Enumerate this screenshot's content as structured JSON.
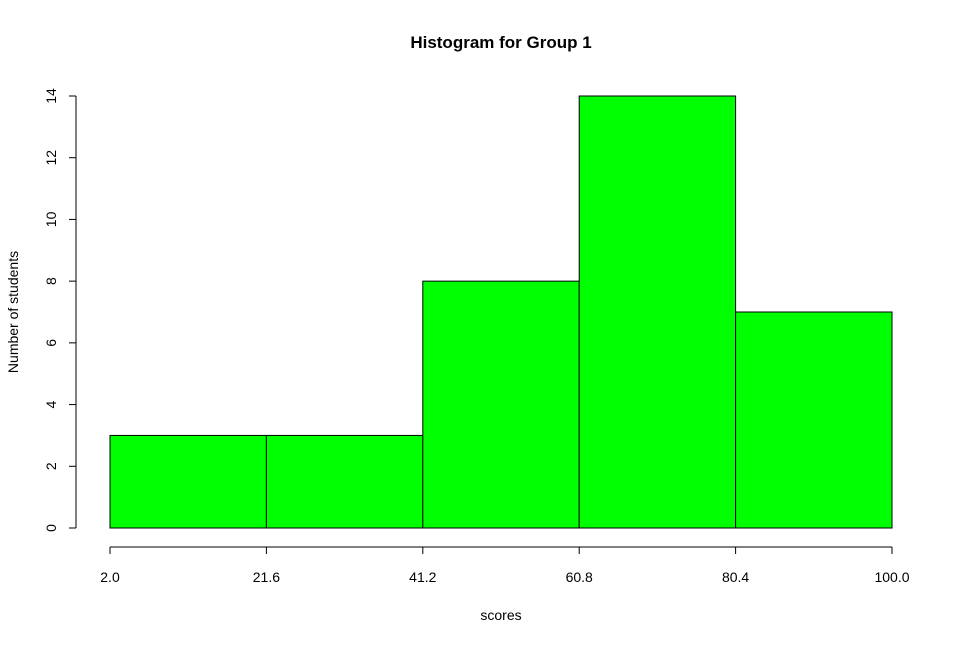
{
  "chart_data": {
    "type": "histogram",
    "title": "Histogram for Group 1",
    "xlabel": "scores",
    "ylabel": "Number of students",
    "bin_edges": [
      2.0,
      21.6,
      41.2,
      60.8,
      80.4,
      100.0
    ],
    "bin_edge_labels": [
      "2.0",
      "21.6",
      "41.2",
      "60.8",
      "80.4",
      "100.0"
    ],
    "counts": [
      3,
      3,
      8,
      14,
      7
    ],
    "xlim": [
      2.0,
      100.0
    ],
    "ylim": [
      0,
      14
    ],
    "y_ticks": [
      0,
      2,
      4,
      6,
      8,
      10,
      12,
      14
    ],
    "y_tick_labels": [
      "0",
      "2",
      "4",
      "6",
      "8",
      "10",
      "12",
      "14"
    ],
    "grid": false,
    "bar_color": "#00ff00",
    "bar_edge_color": "#000000"
  }
}
